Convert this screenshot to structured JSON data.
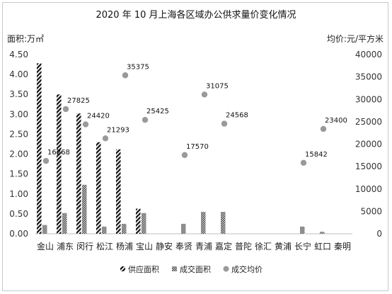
{
  "chart_data": {
    "type": "bar",
    "title": "2020 年 10 月上海各区域办公供求量价变化情况",
    "ylabel_left": "面积:万㎡",
    "ylabel_right": "均价:元/平方米",
    "ylim_left": [
      0,
      4.5
    ],
    "ylim_right": [
      0,
      40000
    ],
    "y_ticks_left": [
      "0.00",
      "0.50",
      "1.00",
      "1.50",
      "2.00",
      "2.50",
      "3.00",
      "3.50",
      "4.00",
      "4.50"
    ],
    "y_ticks_right": [
      "0",
      "5000",
      "10000",
      "15000",
      "20000",
      "25000",
      "30000",
      "35000",
      "40000"
    ],
    "categories": [
      "金山",
      "浦东",
      "闵行",
      "松江",
      "杨浦",
      "宝山",
      "静安",
      "奉贤",
      "青浦",
      "嘉定",
      "普陀",
      "徐汇",
      "黄浦",
      "长宁",
      "虹口",
      "秦明"
    ],
    "series": [
      {
        "name": "供应面积",
        "axis": "left",
        "kind": "bar",
        "pattern": "diagonal",
        "values": [
          4.28,
          3.5,
          3.02,
          2.3,
          2.12,
          0.63,
          0,
          0,
          0,
          0,
          0,
          0,
          0,
          0,
          0,
          0
        ]
      },
      {
        "name": "成交面积",
        "axis": "left",
        "kind": "bar",
        "pattern": "crosshatch",
        "values": [
          0.22,
          0.52,
          1.23,
          0.18,
          0.25,
          0.52,
          0,
          0.25,
          0.55,
          0.55,
          0,
          0,
          0,
          0.18,
          0.05,
          0
        ]
      },
      {
        "name": "成交均价",
        "axis": "right",
        "kind": "scatter",
        "values": [
          16268,
          27825,
          24420,
          21293,
          null,
          25425,
          null,
          17570,
          31075,
          24568,
          null,
          null,
          null,
          15842,
          23400,
          null
        ],
        "labels": [
          "16268",
          "27825",
          "24420",
          "21293",
          "",
          "25425",
          "",
          "17570",
          "31075",
          "24568",
          "",
          "",
          "",
          "15842",
          "23400",
          ""
        ]
      }
    ],
    "extra_points": [
      {
        "category": "杨浦",
        "value": 35375,
        "label": "35375"
      }
    ],
    "legend": {
      "placement": "bottom"
    },
    "grid": false
  },
  "colors": {
    "bar_dark": "#111111",
    "bar_grey": "#555555",
    "dot": "#9a9a9a"
  }
}
